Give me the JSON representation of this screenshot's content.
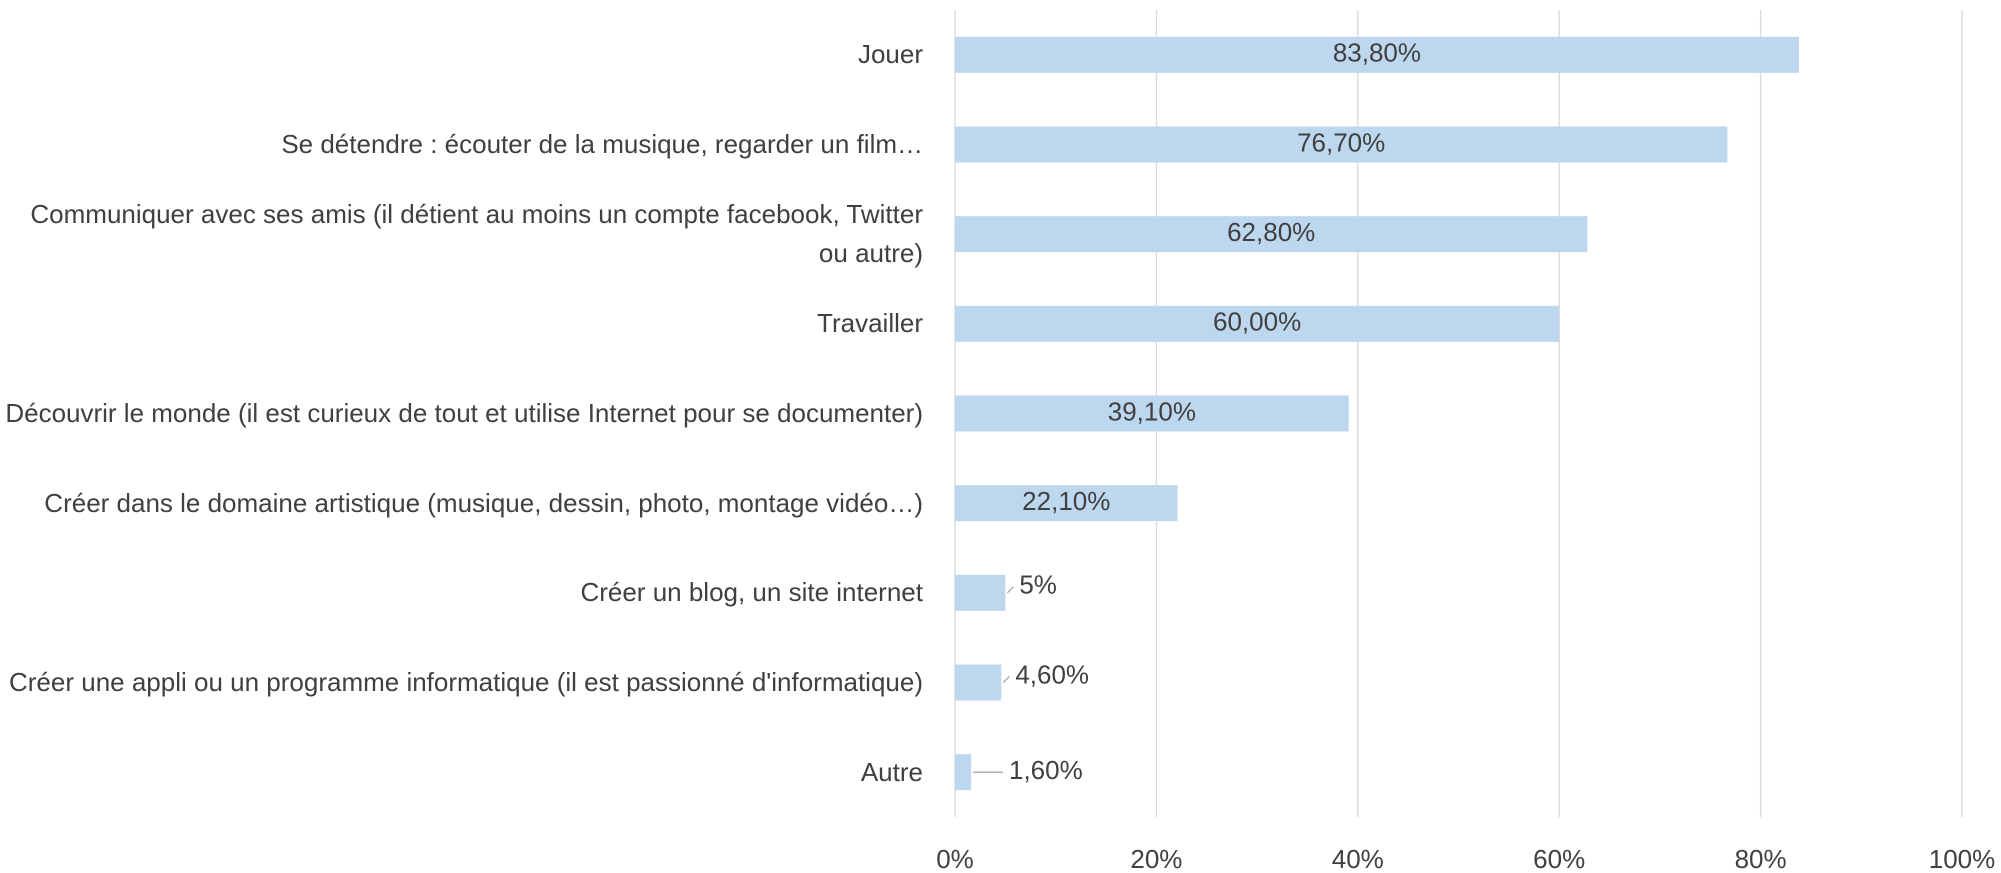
{
  "chart_data": {
    "type": "bar",
    "orientation": "horizontal",
    "categories": [
      "Jouer",
      "Se détendre : écouter de la musique, regarder un film…",
      "Communiquer avec ses amis (il détient au moins un compte facebook, Twitter ou autre)",
      "Travailler",
      "Découvrir le monde (il est curieux de tout et utilise Internet pour se documenter)",
      "Créer dans le domaine artistique (musique, dessin, photo, montage vidéo…)",
      "Créer un blog, un site internet",
      "Créer une appli ou un programme informatique (il est passionné d'informatique)",
      "Autre"
    ],
    "values": [
      83.8,
      76.7,
      62.8,
      60,
      39.1,
      22.1,
      5,
      4.6,
      1.6
    ],
    "value_labels": [
      "83,80%",
      "76,70%",
      "62,80%",
      "60,00%",
      "39,10%",
      "22,10%",
      "5%",
      "4,60%",
      "1,60%"
    ],
    "color": "#bdd7ee",
    "xlim": [
      0,
      100
    ],
    "xticks": [
      {
        "value": 0,
        "label": "0%"
      },
      {
        "value": 20,
        "label": "20%"
      },
      {
        "value": 40,
        "label": "40%"
      },
      {
        "value": 60,
        "label": "60%"
      },
      {
        "value": 80,
        "label": "80%"
      },
      {
        "value": 100,
        "label": "100%"
      }
    ],
    "grid": true
  }
}
